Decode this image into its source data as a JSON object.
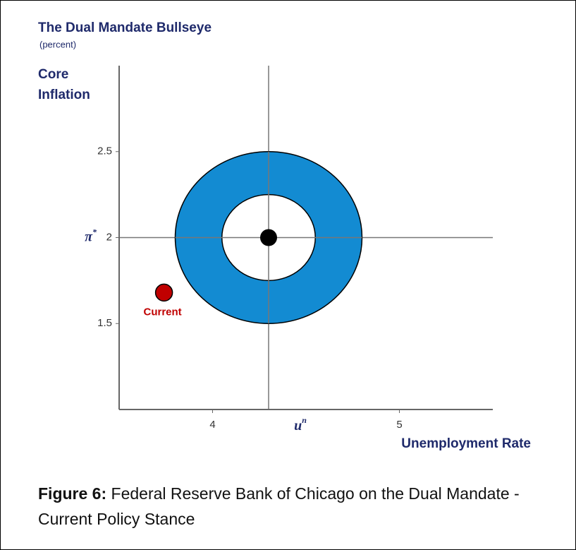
{
  "chart_data": {
    "type": "scatter",
    "title": "The Dual Mandate Bullseye",
    "subtitle": "(percent)",
    "ylabel": "Core Inflation",
    "xlabel": "Unemployment Rate",
    "xlim": [
      3.5,
      5.5
    ],
    "ylim": [
      1,
      3
    ],
    "xticks": [
      4,
      5
    ],
    "yticks": [
      1.5,
      2,
      2.5
    ],
    "grid": false,
    "target": {
      "x": 4.3,
      "y": 2,
      "x_label": "u",
      "x_label_sup": "n",
      "y_label": "π",
      "y_label_sup": "*",
      "inner_radius": 0.25,
      "outer_radius": 0.5,
      "ring_color": "#138bd2",
      "inner_color": "#ffffff",
      "center_color": "#000000"
    },
    "series": [
      {
        "name": "Current",
        "color": "#c00000",
        "x": [
          3.74
        ],
        "values": [
          1.68
        ]
      }
    ]
  },
  "caption": {
    "label": "Figure 6:",
    "text": "Federal Reserve Bank of Chicago on the Dual Mandate - Current Policy Stance"
  }
}
